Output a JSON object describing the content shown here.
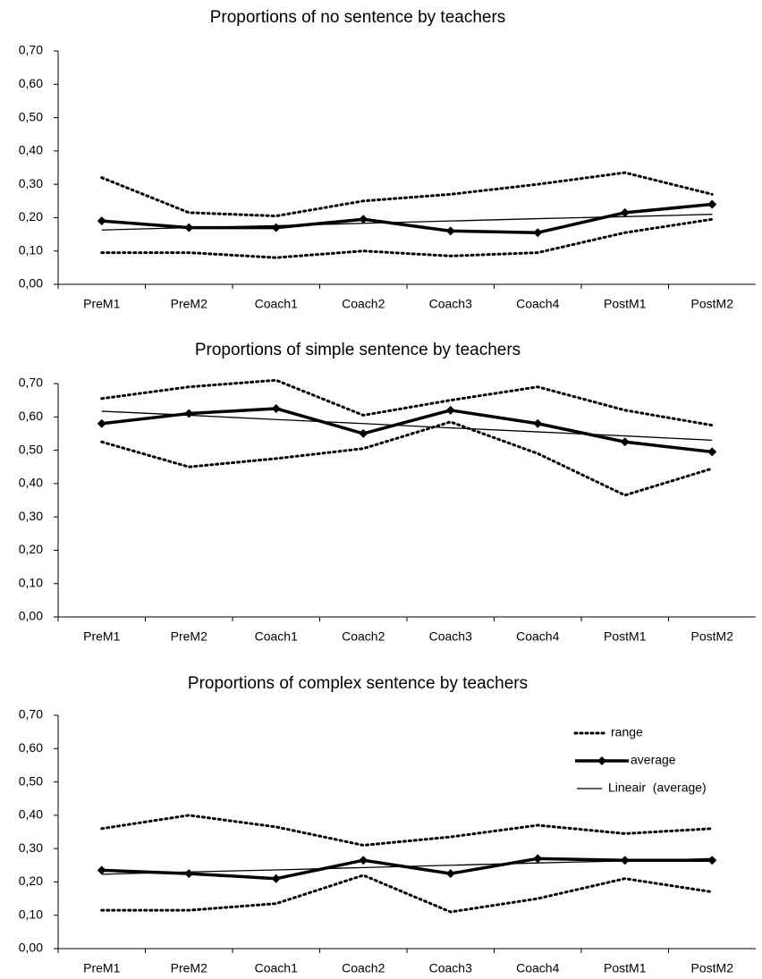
{
  "chart_data": [
    {
      "type": "line",
      "title": "Proportions of no sentence by teachers",
      "categories": [
        "PreM1",
        "PreM2",
        "Coach1",
        "Coach2",
        "Coach3",
        "Coach4",
        "PostM1",
        "PostM2"
      ],
      "ylim": [
        0,
        0.7
      ],
      "yticks": [
        {
          "value": 0,
          "label": "0,00"
        },
        {
          "value": 0.1,
          "label": "0,10"
        },
        {
          "value": 0.2,
          "label": "0,20"
        },
        {
          "value": 0.3,
          "label": "0,30"
        },
        {
          "value": 0.4,
          "label": "0,40"
        },
        {
          "value": 0.5,
          "label": "0,50"
        },
        {
          "value": 0.6,
          "label": "0,60"
        },
        {
          "value": 0.7,
          "label": "0,70"
        }
      ],
      "grid": false,
      "series": [
        {
          "name": "range",
          "color": "#000000",
          "style": "dotted",
          "upper": [
            0.32,
            0.215,
            0.205,
            0.25,
            0.27,
            0.3,
            0.335,
            0.27
          ],
          "lower": [
            0.095,
            0.095,
            0.08,
            0.1,
            0.085,
            0.095,
            0.155,
            0.195
          ]
        },
        {
          "name": "average",
          "color": "#000000",
          "style": "thick",
          "values": [
            0.19,
            0.17,
            0.17,
            0.195,
            0.16,
            0.155,
            0.215,
            0.24
          ]
        },
        {
          "name": "Lineair  (average)",
          "color": "#000000",
          "style": "thin",
          "values": [
            0.163,
            0.17,
            0.176,
            0.183,
            0.19,
            0.197,
            0.203,
            0.21
          ]
        }
      ]
    },
    {
      "type": "line",
      "title": "Proportions of simple sentence by teachers",
      "categories": [
        "PreM1",
        "PreM2",
        "Coach1",
        "Coach2",
        "Coach3",
        "Coach4",
        "PostM1",
        "PostM2"
      ],
      "ylim": [
        0,
        0.7
      ],
      "yticks": [
        {
          "value": 0,
          "label": "0,00"
        },
        {
          "value": 0.1,
          "label": "0,10"
        },
        {
          "value": 0.2,
          "label": "0,20"
        },
        {
          "value": 0.3,
          "label": "0,30"
        },
        {
          "value": 0.4,
          "label": "0,40"
        },
        {
          "value": 0.5,
          "label": "0,50"
        },
        {
          "value": 0.6,
          "label": "0,60"
        },
        {
          "value": 0.7,
          "label": "0,70"
        }
      ],
      "grid": false,
      "series": [
        {
          "name": "range",
          "color": "#000000",
          "style": "dotted",
          "upper": [
            0.655,
            0.69,
            0.71,
            0.605,
            0.65,
            0.69,
            0.62,
            0.575
          ],
          "lower": [
            0.525,
            0.45,
            0.475,
            0.505,
            0.585,
            0.49,
            0.365,
            0.445
          ]
        },
        {
          "name": "average",
          "color": "#000000",
          "style": "thick",
          "values": [
            0.58,
            0.61,
            0.625,
            0.55,
            0.62,
            0.58,
            0.525,
            0.495
          ]
        },
        {
          "name": "Lineair  (average)",
          "color": "#000000",
          "style": "thin",
          "values": [
            0.617,
            0.605,
            0.592,
            0.58,
            0.567,
            0.555,
            0.543,
            0.53
          ]
        }
      ]
    },
    {
      "type": "line",
      "title": "Proportions of complex sentence by teachers",
      "categories": [
        "PreM1",
        "PreM2",
        "Coach1",
        "Coach2",
        "Coach3",
        "Coach4",
        "PostM1",
        "PostM2"
      ],
      "ylim": [
        0,
        0.7
      ],
      "yticks": [
        {
          "value": 0,
          "label": "0,00"
        },
        {
          "value": 0.1,
          "label": "0,10"
        },
        {
          "value": 0.2,
          "label": "0,20"
        },
        {
          "value": 0.3,
          "label": "0,30"
        },
        {
          "value": 0.4,
          "label": "0,40"
        },
        {
          "value": 0.5,
          "label": "0,50"
        },
        {
          "value": 0.6,
          "label": "0,60"
        },
        {
          "value": 0.7,
          "label": "0,70"
        }
      ],
      "grid": false,
      "legend": "upper right",
      "series": [
        {
          "name": "range",
          "color": "#000000",
          "style": "dotted",
          "upper": [
            0.36,
            0.4,
            0.365,
            0.31,
            0.335,
            0.37,
            0.345,
            0.36
          ],
          "lower": [
            0.115,
            0.115,
            0.135,
            0.22,
            0.11,
            0.15,
            0.21,
            0.17
          ]
        },
        {
          "name": "average",
          "color": "#000000",
          "style": "thick",
          "values": [
            0.235,
            0.225,
            0.21,
            0.265,
            0.225,
            0.27,
            0.265,
            0.265
          ]
        },
        {
          "name": "Lineair  (average)",
          "color": "#000000",
          "style": "thin",
          "values": [
            0.223,
            0.23,
            0.236,
            0.243,
            0.25,
            0.257,
            0.263,
            0.27
          ]
        }
      ]
    }
  ]
}
